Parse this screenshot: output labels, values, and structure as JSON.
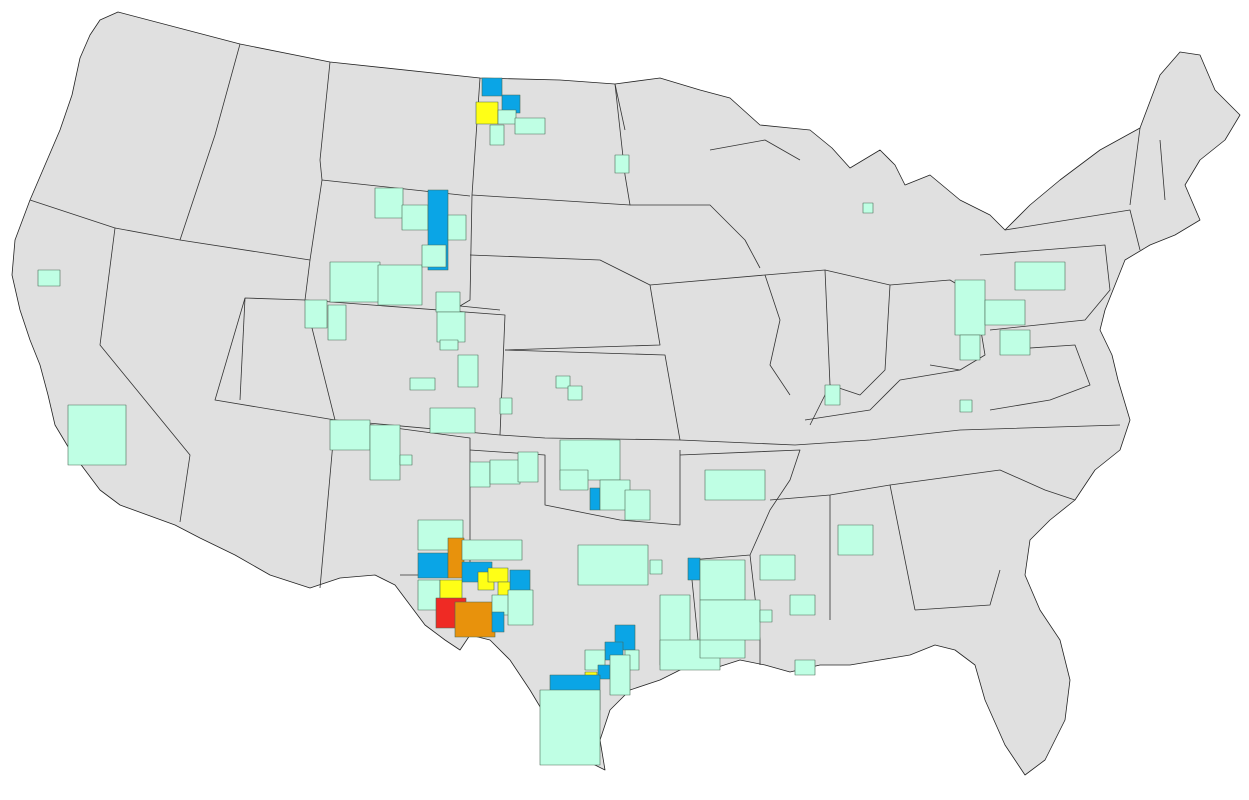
{
  "map": {
    "region": "contiguous-united-states",
    "projection": "albers-equal-area",
    "base_color": "#e0e0e0",
    "border_color": "#333333",
    "legend": "none",
    "title": ""
  },
  "categories": [
    {
      "id": "level-1",
      "color": "#bfffe4"
    },
    {
      "id": "level-2",
      "color": "#0aa5e6"
    },
    {
      "id": "level-3",
      "color": "#ffff16"
    },
    {
      "id": "level-4",
      "color": "#e8920c"
    },
    {
      "id": "level-5",
      "color": "#ef2a24"
    }
  ],
  "highlighted_areas": [
    {
      "area": "northwest-north-dakota",
      "categories": [
        "level-2",
        "level-3",
        "level-1"
      ]
    },
    {
      "area": "wyoming",
      "categories": [
        "level-1",
        "level-2"
      ]
    },
    {
      "area": "colorado",
      "categories": [
        "level-1"
      ]
    },
    {
      "area": "southern-california",
      "categories": [
        "level-1"
      ]
    },
    {
      "area": "kansas",
      "categories": [
        "level-1"
      ]
    },
    {
      "area": "oklahoma",
      "categories": [
        "level-1",
        "level-2"
      ]
    },
    {
      "area": "west-texas-permian-basin",
      "categories": [
        "level-1",
        "level-2",
        "level-3",
        "level-4",
        "level-5"
      ]
    },
    {
      "area": "south-texas",
      "categories": [
        "level-1",
        "level-2",
        "level-3"
      ]
    },
    {
      "area": "louisiana",
      "categories": [
        "level-1",
        "level-2"
      ]
    },
    {
      "area": "arkansas",
      "categories": [
        "level-1"
      ]
    },
    {
      "area": "mississippi",
      "categories": [
        "level-1"
      ]
    },
    {
      "area": "alabama",
      "categories": [
        "level-1"
      ]
    },
    {
      "area": "michigan",
      "categories": [
        "level-1"
      ]
    },
    {
      "area": "ohio",
      "categories": [
        "level-1"
      ]
    },
    {
      "area": "west-virginia",
      "categories": [
        "level-1"
      ]
    },
    {
      "area": "pennsylvania",
      "categories": [
        "level-1"
      ]
    }
  ]
}
